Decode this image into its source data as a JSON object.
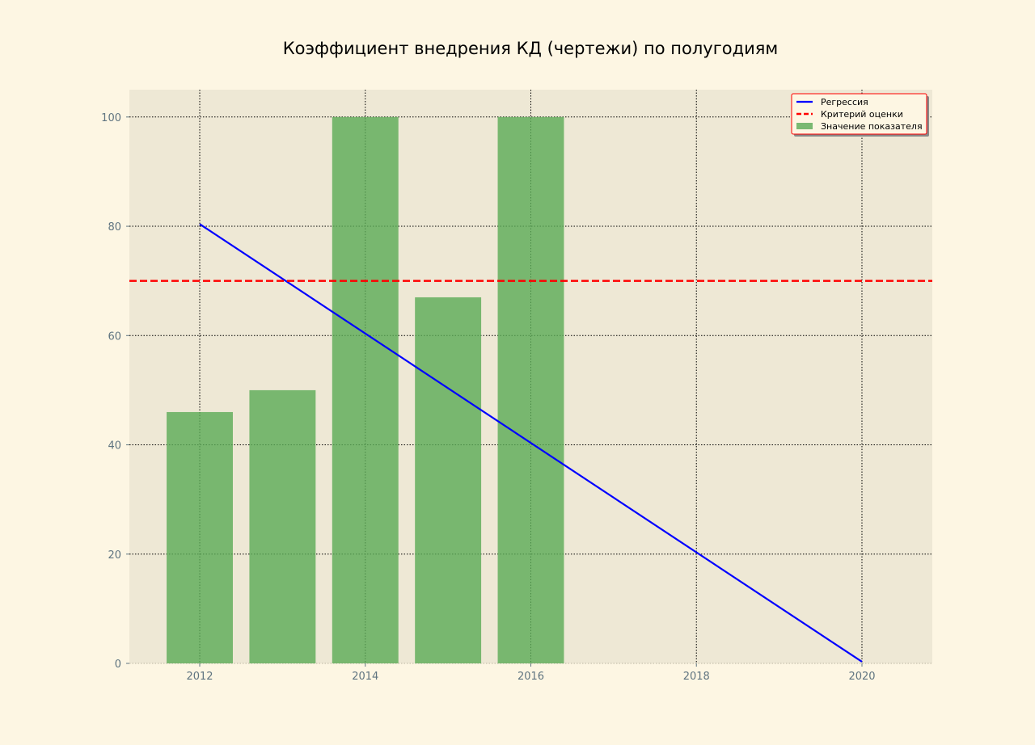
{
  "chart_data": {
    "type": "bar",
    "title": "Коэффициент внедрения КД (чертежи) по полугодиям",
    "xlabel": "",
    "ylabel": "",
    "xlim": [
      2011.15,
      2020.85
    ],
    "ylim": [
      0,
      105
    ],
    "x_ticks": [
      2012,
      2014,
      2016,
      2018,
      2020
    ],
    "y_ticks": [
      0,
      20,
      40,
      60,
      80,
      100
    ],
    "grid": true,
    "legend_position": "top-right",
    "bars": {
      "name": "Значение показателя",
      "color": "#5aaa55",
      "x": [
        2012,
        2013,
        2014,
        2015,
        2016
      ],
      "values": [
        46,
        50,
        100,
        67,
        100
      ]
    },
    "series": [
      {
        "name": "Регрессия",
        "type": "line",
        "color": "#0000ff",
        "style": "solid",
        "x": [
          2012,
          2020
        ],
        "values": [
          80.4,
          0.3
        ]
      },
      {
        "name": "Критерий оценки",
        "type": "hline",
        "color": "#ff0000",
        "style": "dashed",
        "value": 70
      }
    ]
  },
  "colors": {
    "page_bg": "#fdf6e3",
    "plot_bg": "#eee8d5",
    "tick_text": "#5f7480",
    "legend_border": "#ff0000"
  }
}
